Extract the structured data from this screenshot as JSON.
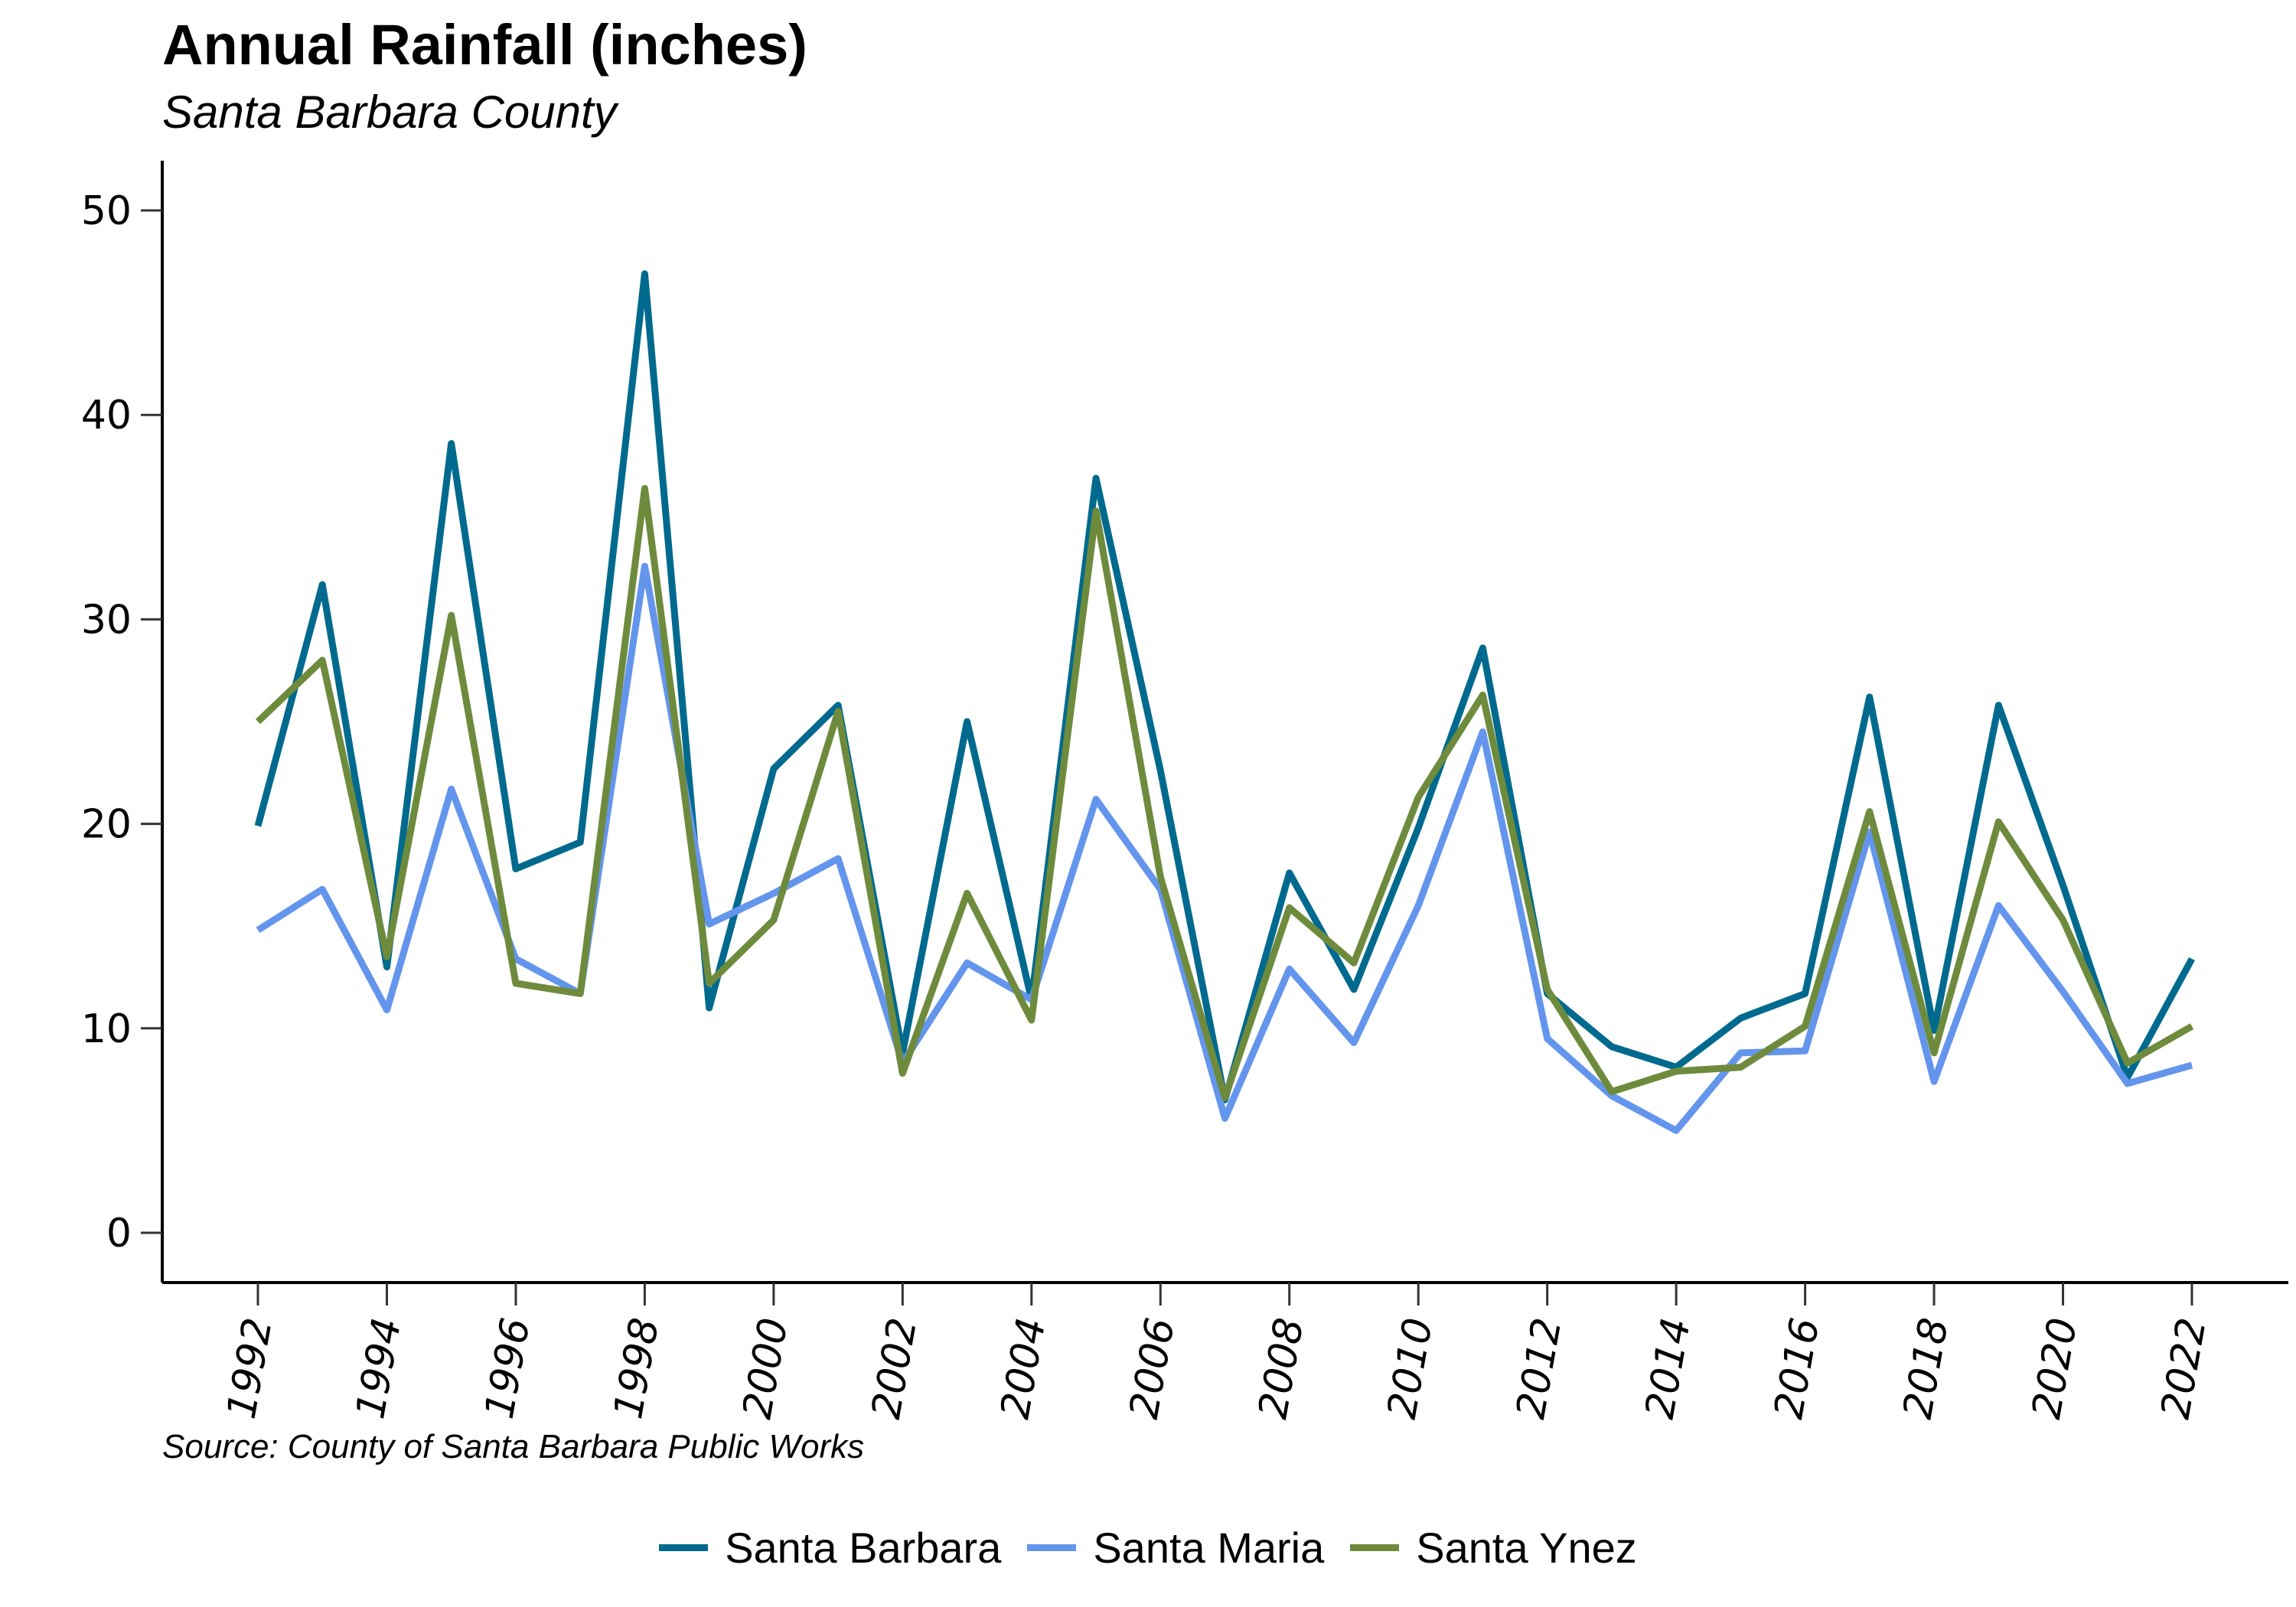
{
  "chart_data": {
    "type": "line",
    "title": "Annual Rainfall (inches)",
    "subtitle": "Santa Barbara County",
    "source": "Source: County of Santa Barbara Public Works",
    "xlabel": "",
    "ylabel": "",
    "ylim": [
      0,
      50
    ],
    "yticks": [
      0,
      10,
      20,
      30,
      40,
      50
    ],
    "xticks": [
      1992,
      1994,
      1996,
      1998,
      2000,
      2002,
      2004,
      2006,
      2008,
      2010,
      2012,
      2014,
      2016,
      2018,
      2020,
      2022
    ],
    "grid": false,
    "legend_position": "bottom",
    "x": [
      1992,
      1993,
      1994,
      1995,
      1996,
      1997,
      1998,
      1999,
      2000,
      2001,
      2002,
      2003,
      2004,
      2005,
      2006,
      2007,
      2008,
      2009,
      2010,
      2011,
      2012,
      2013,
      2014,
      2015,
      2016,
      2017,
      2018,
      2019,
      2020,
      2021,
      2022
    ],
    "series": [
      {
        "name": "Santa Barbara",
        "color": "#006a8e",
        "values": [
          19.9,
          31.7,
          13.0,
          38.6,
          17.8,
          19.1,
          46.9,
          11.0,
          22.7,
          25.8,
          8.8,
          25.0,
          11.4,
          36.9,
          22.6,
          6.5,
          17.6,
          11.9,
          19.8,
          28.6,
          11.7,
          9.1,
          8.1,
          10.5,
          11.7,
          26.2,
          9.9,
          25.8,
          17.0,
          7.6,
          13.4
        ]
      },
      {
        "name": "Santa Maria",
        "color": "#6495ed",
        "values": [
          14.8,
          16.8,
          10.9,
          21.7,
          13.4,
          11.7,
          32.6,
          15.1,
          16.6,
          18.3,
          8.3,
          13.2,
          11.4,
          21.2,
          16.8,
          5.6,
          12.9,
          9.3,
          16.0,
          24.5,
          9.5,
          6.7,
          5.0,
          8.8,
          8.9,
          19.6,
          7.4,
          16.0,
          11.8,
          7.3,
          8.2
        ]
      },
      {
        "name": "Santa Ynez",
        "color": "#6e8b3d",
        "values": [
          25.0,
          28.0,
          13.5,
          30.2,
          12.2,
          11.7,
          36.4,
          12.2,
          15.3,
          25.5,
          7.8,
          16.6,
          10.4,
          35.3,
          17.4,
          6.6,
          15.9,
          13.2,
          21.3,
          26.3,
          11.9,
          6.9,
          7.9,
          8.1,
          10.1,
          20.6,
          8.8,
          20.1,
          15.3,
          8.3,
          10.1
        ]
      }
    ]
  }
}
